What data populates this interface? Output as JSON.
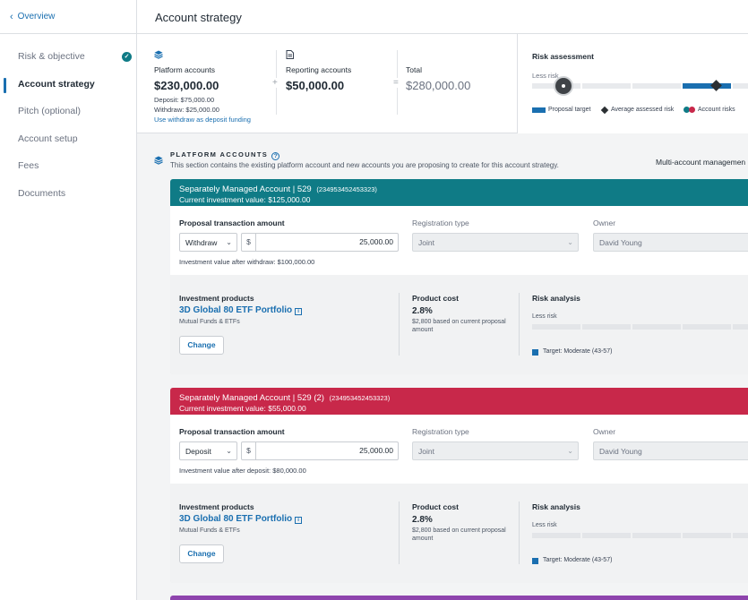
{
  "sidebar": {
    "back_label": "Overview",
    "items": [
      {
        "label": "Risk & objective",
        "completed": true
      },
      {
        "label": "Account strategy",
        "active": true
      },
      {
        "label": "Pitch (optional)"
      },
      {
        "label": "Account setup"
      },
      {
        "label": "Fees"
      },
      {
        "label": "Documents"
      }
    ]
  },
  "header": {
    "title": "Account strategy"
  },
  "summary": {
    "platform": {
      "label": "Platform accounts",
      "value": "$230,000.00",
      "deposit": "Deposit: $75,000.00",
      "withdraw": "Withdraw: $25,000.00",
      "link": "Use withdraw as deposit funding"
    },
    "plus": "+",
    "reporting": {
      "label": "Reporting accounts",
      "value": "$50,000.00"
    },
    "equals": "=",
    "total": {
      "label": "Total",
      "value": "$280,000.00"
    }
  },
  "risk_assessment": {
    "title": "Risk assessment",
    "less_risk": "Less risk",
    "legend": {
      "proposal_target": "Proposal target",
      "average": "Average assessed risk",
      "account_risks": "Account risks"
    }
  },
  "section": {
    "title": "PLATFORM ACCOUNTS",
    "help": "?",
    "description": "This section contains the existing platform account and new accounts you are proposing to create for this account strategy.",
    "right_label": "Multi-account managemen"
  },
  "accounts": [
    {
      "color": "#0f7b86",
      "title": "Separately Managed Account | 529",
      "account_number": "(234953452453323)",
      "current_value": "Current investment value: $125,000.00",
      "transaction_label": "Proposal transaction amount",
      "transaction_type": "Withdraw",
      "currency": "$",
      "amount": "25,000.00",
      "after_text": "Investment value after withdraw: $100,000.00",
      "registration_label": "Registration type",
      "registration": "Joint",
      "owner_label": "Owner",
      "owner": "David Young",
      "products_label": "Investment products",
      "product_name": "3D Global 80 ETF Portfolio",
      "info": "i",
      "product_type": "Mutual Funds & ETFs",
      "change_label": "Change",
      "cost_label": "Product cost",
      "cost_value": "2.8%",
      "cost_note": "$2,800 based on current proposal amount",
      "risk_label": "Risk analysis",
      "risk_less": "Less risk",
      "risk_target": "Target: Moderate (43-57)"
    },
    {
      "color": "#c8284a",
      "title": "Separately Managed Account | 529",
      "title_count": "(2)",
      "account_number": "(234953452453323)",
      "current_value": "Current investment value: $55,000.00",
      "transaction_label": "Proposal transaction amount",
      "transaction_type": "Deposit",
      "currency": "$",
      "amount": "25,000.00",
      "after_text": "Investment value after deposit: $80,000.00",
      "registration_label": "Registration type",
      "registration": "Joint",
      "owner_label": "Owner",
      "owner": "David Young",
      "products_label": "Investment products",
      "product_name": "3D Global 80 ETF Portfolio",
      "info": "i",
      "product_type": "Mutual Funds & ETFs",
      "change_label": "Change",
      "cost_label": "Product cost",
      "cost_value": "2.8%",
      "cost_note": "$2,800 based on current proposal amount",
      "risk_label": "Risk analysis",
      "risk_less": "Less risk",
      "risk_target": "Target: Moderate (43-57)"
    }
  ],
  "colors": {
    "accent_blue": "#1a6fb0",
    "teal": "#0f7b86",
    "crimson": "#c8284a",
    "purple": "#8e44ad"
  },
  "icons": {
    "back": "chevron-left-icon",
    "completed": "check-circle-icon",
    "platform": "layers-icon",
    "reporting": "document-icon",
    "help": "help-circle-icon",
    "info": "info-icon",
    "dropdown": "chevron-down-icon"
  }
}
